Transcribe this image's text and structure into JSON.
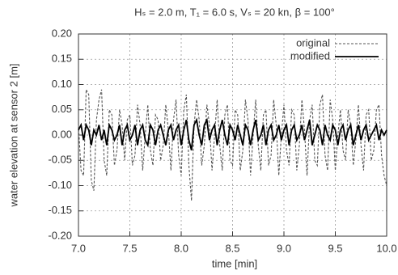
{
  "chart_data": {
    "type": "line",
    "title": "Hₛ = 2.0 m, T₁ = 6.0 s, Vₛ = 20 kn, β = 100°",
    "x_label": "time [min]",
    "y_label": "water elevation at sensor 2 [m]",
    "x": [
      7,
      7.025,
      7.05,
      7.075,
      7.1,
      7.125,
      7.15,
      7.175,
      7.2,
      7.225,
      7.25,
      7.275,
      7.3,
      7.325,
      7.35,
      7.375,
      7.4,
      7.425,
      7.45,
      7.475,
      7.5,
      7.525,
      7.55,
      7.575,
      7.6,
      7.625,
      7.65,
      7.675,
      7.7,
      7.725,
      7.75,
      7.775,
      7.8,
      7.825,
      7.85,
      7.875,
      7.9,
      7.925,
      7.95,
      7.975,
      8,
      8.025,
      8.05,
      8.075,
      8.1,
      8.125,
      8.15,
      8.175,
      8.2,
      8.225,
      8.25,
      8.275,
      8.3,
      8.325,
      8.35,
      8.375,
      8.4,
      8.425,
      8.45,
      8.475,
      8.5,
      8.525,
      8.55,
      8.575,
      8.6,
      8.625,
      8.65,
      8.675,
      8.7,
      8.725,
      8.75,
      8.775,
      8.8,
      8.825,
      8.85,
      8.875,
      8.9,
      8.925,
      8.95,
      8.975,
      9,
      9.025,
      9.05,
      9.075,
      9.1,
      9.125,
      9.15,
      9.175,
      9.2,
      9.225,
      9.25,
      9.275,
      9.3,
      9.325,
      9.35,
      9.375,
      9.4,
      9.425,
      9.45,
      9.475,
      9.5,
      9.525,
      9.55,
      9.575,
      9.6,
      9.625,
      9.65,
      9.675,
      9.7,
      9.725,
      9.75,
      9.775,
      9.8,
      9.825,
      9.85,
      9.875,
      9.9,
      9.925,
      9.95,
      9.975,
      10
    ],
    "series": [
      {
        "name": "original",
        "color": "#555555",
        "line_style": "dashed",
        "values": [
          0.02,
          -0.07,
          -0.08,
          0.09,
          0.08,
          -0.09,
          -0.11,
          0.03,
          0.07,
          0.09,
          -0.05,
          -0.08,
          0.05,
          0.04,
          -0.06,
          -0.03,
          0.05,
          0.02,
          -0.05,
          0.03,
          0.04,
          -0.06,
          -0.04,
          0.06,
          0.02,
          -0.07,
          0.0,
          0.06,
          -0.03,
          -0.06,
          0.04,
          0.03,
          -0.05,
          -0.02,
          0.06,
          0.01,
          -0.07,
          0.03,
          0.07,
          -0.04,
          -0.08,
          0.05,
          0.08,
          -0.06,
          -0.13,
          0.02,
          0.07,
          0.03,
          -0.06,
          -0.02,
          0.06,
          0.02,
          -0.07,
          0.0,
          0.07,
          -0.02,
          -0.07,
          0.04,
          0.06,
          -0.05,
          -0.06,
          0.05,
          0.04,
          -0.07,
          -0.03,
          0.07,
          0.03,
          -0.08,
          0.0,
          0.07,
          -0.02,
          -0.07,
          0.04,
          0.05,
          -0.06,
          -0.04,
          0.07,
          0.02,
          -0.08,
          0.0,
          0.06,
          -0.03,
          -0.06,
          0.05,
          0.04,
          -0.07,
          -0.02,
          0.07,
          0.01,
          -0.08,
          0.03,
          0.06,
          -0.05,
          -0.06,
          0.06,
          0.08,
          -0.04,
          -0.07,
          0.07,
          0.03,
          -0.07,
          0.0,
          0.05,
          -0.03,
          -0.05,
          0.05,
          0.02,
          -0.06,
          -0.01,
          0.06,
          -0.02,
          -0.07,
          0.04,
          0.05,
          -0.05,
          -0.03,
          0.05,
          0.06,
          -0.04,
          -0.08,
          -0.1
        ]
      },
      {
        "name": "modified",
        "color": "#000000",
        "line_style": "solid",
        "values": [
          0.01,
          0.02,
          -0.01,
          0.02,
          0.01,
          -0.02,
          0.01,
          0.0,
          0.02,
          -0.01,
          0.01,
          -0.02,
          0.02,
          0.01,
          -0.01,
          0.0,
          0.02,
          -0.02,
          0.01,
          0.02,
          -0.01,
          0.0,
          0.02,
          -0.02,
          0.01,
          0.02,
          -0.01,
          -0.02,
          0.02,
          0.01,
          -0.02,
          0.01,
          0.02,
          0.0,
          -0.02,
          0.01,
          0.02,
          -0.01,
          0.01,
          0.02,
          -0.02,
          0.01,
          0.03,
          -0.01,
          -0.03,
          0.02,
          0.03,
          0.0,
          -0.02,
          0.02,
          0.03,
          -0.01,
          0.01,
          0.02,
          -0.02,
          0.01,
          0.03,
          0.0,
          -0.02,
          0.02,
          0.01,
          -0.01,
          0.02,
          0.0,
          -0.02,
          0.02,
          0.01,
          -0.02,
          0.01,
          0.03,
          -0.01,
          0.0,
          0.02,
          -0.02,
          0.01,
          0.02,
          -0.01,
          0.0,
          0.02,
          -0.01,
          0.01,
          0.02,
          -0.02,
          0.01,
          0.02,
          -0.01,
          0.0,
          0.02,
          -0.01,
          0.01,
          0.03,
          -0.02,
          0.0,
          0.02,
          0.01,
          -0.02,
          0.02,
          0.0,
          -0.01,
          0.02,
          0.01,
          -0.02,
          0.01,
          0.02,
          -0.01,
          0.01,
          0.02,
          -0.02,
          0.0,
          0.02,
          -0.01,
          0.01,
          0.02,
          -0.01,
          0.0,
          0.01,
          0.02,
          -0.01,
          0.01,
          0.0,
          0.01
        ]
      }
    ],
    "xlim": [
      7,
      10
    ],
    "xticks": [
      {
        "value": 7,
        "label": "7.0"
      },
      {
        "value": 7.5,
        "label": "7.5"
      },
      {
        "value": 8,
        "label": "8.0"
      },
      {
        "value": 8.5,
        "label": "8.5"
      },
      {
        "value": 9,
        "label": "9.0"
      },
      {
        "value": 9.5,
        "label": "9.5"
      },
      {
        "value": 10,
        "label": "10.0"
      }
    ],
    "ylim": [
      -0.2,
      0.2
    ],
    "yticks": [
      {
        "value": -0.2,
        "label": "-0.20"
      },
      {
        "value": -0.15,
        "label": "-0.15"
      },
      {
        "value": -0.1,
        "label": "-0.10"
      },
      {
        "value": -0.05,
        "label": "-0.05"
      },
      {
        "value": 0,
        "label": "0.00"
      },
      {
        "value": 0.05,
        "label": "0.05"
      },
      {
        "value": 0.1,
        "label": "0.10"
      },
      {
        "value": 0.15,
        "label": "0.15"
      },
      {
        "value": 0.2,
        "label": "0.20"
      }
    ],
    "grid": true,
    "legend": "top-right"
  }
}
